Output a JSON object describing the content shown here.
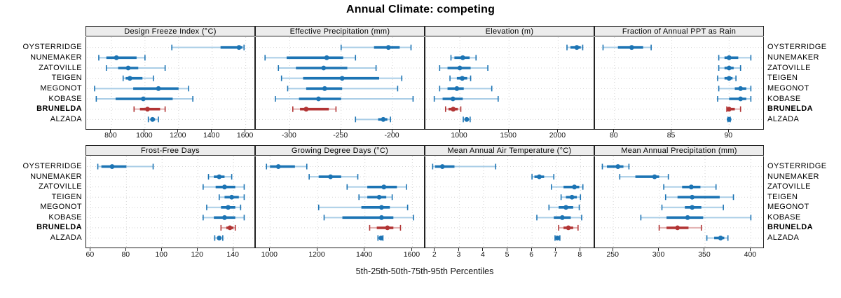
{
  "title": "Annual Climate: competing",
  "xlabel": "5th-25th-50th-75th-95th Percentiles",
  "locations": [
    "OYSTERRIDGE",
    "NUNEMAKER",
    "ZATOVILLE",
    "TEIGEN",
    "MEGONOT",
    "KOBASE",
    "BRUNELDA",
    "ALZADA"
  ],
  "highlight_location": "BRUNELDA",
  "colors": {
    "blue": "#1c74b4",
    "blue_light": "#a9cde6",
    "red": "#b23434",
    "red_light": "#e2b1b1",
    "grid": "#d4d4d4",
    "strip_bg": "#ececec",
    "border": "#222222"
  },
  "chart_data": {
    "type": "dotplot-percentiles",
    "percentile_labels": [
      "5th",
      "25th",
      "50th",
      "75th",
      "95th"
    ],
    "legend_position": "none",
    "grid": "dotted major gridlines, horizontal row guides",
    "panels": [
      {
        "title": "Design Freeze Index (°C)",
        "row": 0,
        "ticks": [
          800,
          1000,
          1200,
          1400,
          1600
        ],
        "range": [
          650,
          1660
        ],
        "values": {
          "OYSTERRIDGE": [
            1160,
            1450,
            1560,
            1580,
            1590
          ],
          "NUNEMAKER": [
            725,
            770,
            830,
            950,
            1000
          ],
          "ZATOVILLE": [
            770,
            840,
            900,
            960,
            1120
          ],
          "TEIGEN": [
            870,
            885,
            910,
            985,
            1050
          ],
          "MEGONOT": [
            700,
            930,
            1080,
            1200,
            1260
          ],
          "KOBASE": [
            710,
            825,
            990,
            1165,
            1285
          ],
          "BRUNELDA": [
            935,
            970,
            1015,
            1090,
            1120
          ],
          "ALZADA": [
            1020,
            1035,
            1045,
            1060,
            1080
          ]
        }
      },
      {
        "title": "Effective Precipitation (mm)",
        "row": 0,
        "ticks": [
          -300,
          -250,
          -200
        ],
        "range": [
          -333,
          -168
        ],
        "values": {
          "OYSTERRIDGE": [
            -250,
            -218,
            -204,
            -193,
            -182
          ],
          "NUNEMAKER": [
            -324,
            -303,
            -264,
            -248,
            -236
          ],
          "ZATOVILLE": [
            -311,
            -294,
            -267,
            -244,
            -216
          ],
          "TEIGEN": [
            -308,
            -287,
            -249,
            -213,
            -191
          ],
          "MEGONOT": [
            -302,
            -284,
            -266,
            -249,
            -195
          ],
          "KOBASE": [
            -314,
            -291,
            -272,
            -250,
            -180
          ],
          "BRUNELDA": [
            -297,
            -290,
            -284,
            -262,
            -255
          ],
          "ALZADA": [
            -236,
            -214,
            -209,
            -205,
            -202
          ]
        }
      },
      {
        "title": "Elevation (m)",
        "row": 0,
        "ticks": [
          1000,
          1500,
          2000
        ],
        "range": [
          650,
          2375
        ],
        "values": {
          "OYSTERRIDGE": [
            2090,
            2125,
            2190,
            2230,
            2250
          ],
          "NUNEMAKER": [
            910,
            945,
            1030,
            1100,
            1165
          ],
          "ZATOVILLE": [
            795,
            875,
            1000,
            1110,
            1285
          ],
          "TEIGEN": [
            900,
            970,
            1025,
            1075,
            1110
          ],
          "MEGONOT": [
            795,
            875,
            970,
            1040,
            1325
          ],
          "KOBASE": [
            740,
            825,
            930,
            1030,
            1390
          ],
          "BRUNELDA": [
            855,
            885,
            933,
            980,
            1010
          ],
          "ALZADA": [
            1035,
            1055,
            1070,
            1090,
            1105
          ]
        }
      },
      {
        "title": "Fraction of Annual PPT as Rain",
        "row": 0,
        "ticks": [
          80,
          85,
          90
        ],
        "range": [
          78.3,
          93.1
        ],
        "values": {
          "OYSTERRIDGE": [
            79.0,
            80.3,
            81.5,
            82.5,
            83.2
          ],
          "NUNEMAKER": [
            89.1,
            89.6,
            90.0,
            90.8,
            91.9
          ],
          "ZATOVILLE": [
            89.1,
            89.6,
            90.0,
            90.4,
            91.0
          ],
          "TEIGEN": [
            89.0,
            89.6,
            90.0,
            90.3,
            90.6
          ],
          "MEGONOT": [
            89.1,
            90.5,
            91.0,
            91.5,
            91.9
          ],
          "KOBASE": [
            89.0,
            90.0,
            91.0,
            91.5,
            91.9
          ],
          "BRUNELDA": [
            89.8,
            89.9,
            90.0,
            90.5,
            91.0
          ],
          "ALZADA": [
            89.9,
            89.95,
            90.0,
            90.05,
            90.1
          ]
        }
      },
      {
        "title": "Frost-Free Days",
        "row": 1,
        "ticks": [
          60,
          80,
          100,
          120,
          140
        ],
        "range": [
          57.5,
          152.5
        ],
        "values": {
          "OYSTERRIDGE": [
            64,
            66,
            72,
            80,
            95
          ],
          "NUNEMAKER": [
            126,
            129,
            132,
            135,
            139
          ],
          "ZATOVILLE": [
            123,
            130,
            135,
            141,
            146
          ],
          "TEIGEN": [
            132,
            135,
            139,
            143,
            146
          ],
          "MEGONOT": [
            125,
            133,
            137,
            141,
            144
          ],
          "KOBASE": [
            123,
            129,
            135,
            141,
            146
          ],
          "BRUNELDA": [
            133,
            136,
            138,
            140,
            141
          ],
          "ALZADA": [
            129.5,
            131,
            132,
            133,
            134
          ]
        }
      },
      {
        "title": "Growing Degree Days (°C)",
        "row": 1,
        "ticks": [
          1000,
          1200,
          1400,
          1600
        ],
        "range": [
          940,
          1655
        ],
        "values": {
          "OYSTERRIDGE": [
            985,
            1000,
            1035,
            1105,
            1155
          ],
          "NUNEMAKER": [
            1165,
            1205,
            1255,
            1300,
            1370
          ],
          "ZATOVILLE": [
            1325,
            1410,
            1480,
            1535,
            1575
          ],
          "TEIGEN": [
            1375,
            1410,
            1460,
            1490,
            1515
          ],
          "MEGONOT": [
            1205,
            1385,
            1470,
            1505,
            1580
          ],
          "KOBASE": [
            1228,
            1305,
            1470,
            1520,
            1605
          ],
          "BRUNELDA": [
            1420,
            1450,
            1495,
            1520,
            1550
          ],
          "ALZADA": [
            1455,
            1463,
            1468,
            1472,
            1476
          ]
        }
      },
      {
        "title": "Mean Annual Air Temperature (°C)",
        "row": 1,
        "ticks": [
          2,
          3,
          4,
          5,
          6,
          7,
          8
        ],
        "range": [
          1.6,
          8.6
        ],
        "values": {
          "OYSTERRIDGE": [
            1.9,
            2.0,
            2.3,
            2.8,
            4.5
          ],
          "NUNEMAKER": [
            6.0,
            6.1,
            6.3,
            6.5,
            6.9
          ],
          "ZATOVILLE": [
            6.8,
            7.3,
            7.75,
            7.95,
            8.1
          ],
          "TEIGEN": [
            7.2,
            7.4,
            7.65,
            7.85,
            8.0
          ],
          "MEGONOT": [
            6.7,
            7.1,
            7.4,
            7.7,
            7.95
          ],
          "KOBASE": [
            6.2,
            6.9,
            7.25,
            7.6,
            8.05
          ],
          "BRUNELDA": [
            7.1,
            7.3,
            7.5,
            7.7,
            7.9
          ],
          "ALZADA": [
            6.95,
            7.0,
            7.05,
            7.1,
            7.15
          ]
        }
      },
      {
        "title": "Mean Annual Precipitation (mm)",
        "row": 1,
        "ticks": [
          250,
          300,
          350,
          400
        ],
        "range": [
          230,
          415
        ],
        "values": {
          "OYSTERRIDGE": [
            238,
            243,
            255,
            261,
            267
          ],
          "NUNEMAKER": [
            257,
            274,
            295,
            300,
            310
          ],
          "ZATOVILLE": [
            305,
            325,
            335,
            345,
            362
          ],
          "TEIGEN": [
            307,
            320,
            336,
            366,
            381
          ],
          "MEGONOT": [
            303,
            328,
            336,
            346,
            370
          ],
          "KOBASE": [
            280,
            308,
            331,
            348,
            400
          ],
          "BRUNELDA": [
            300,
            308,
            320,
            332,
            346
          ],
          "ALZADA": [
            352,
            360,
            367,
            371,
            375
          ]
        }
      }
    ]
  }
}
